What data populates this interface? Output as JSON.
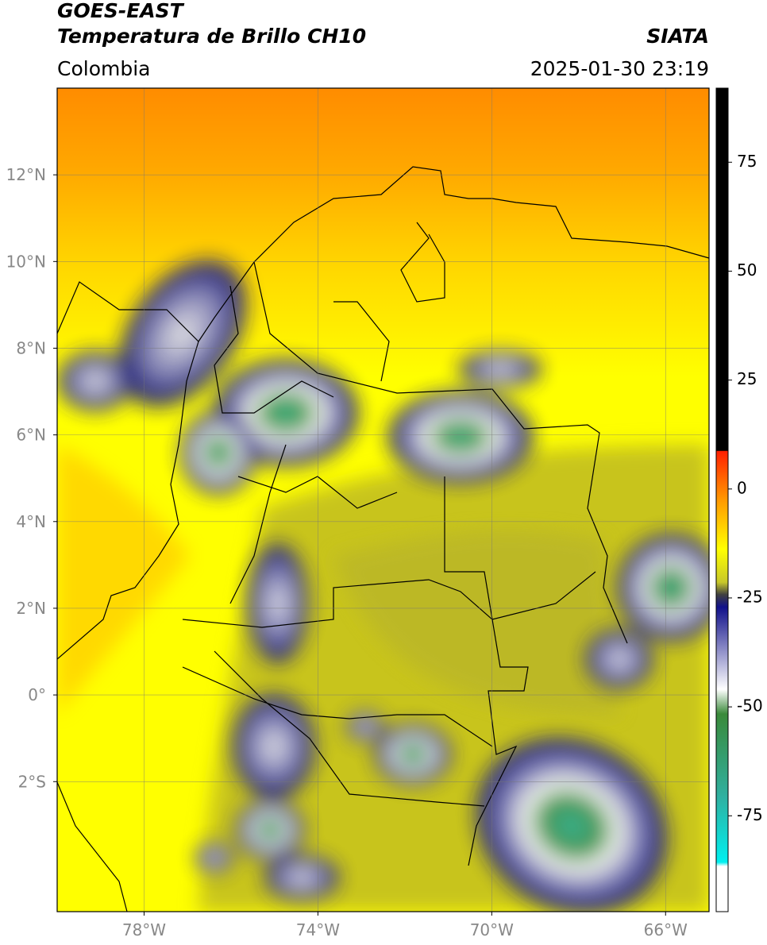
{
  "header": {
    "title": "GOES-EAST",
    "subtitle": "Temperatura de Brillo CH10",
    "source": "SIATA",
    "region": "Colombia",
    "datetime": "2025-01-30 23:19"
  },
  "map": {
    "xlim": [
      -80,
      -65
    ],
    "ylim": [
      -5,
      14
    ],
    "xticks": [
      {
        "value": -78,
        "label": "78°W"
      },
      {
        "value": -74,
        "label": "74°W"
      },
      {
        "value": -70,
        "label": "70°W"
      },
      {
        "value": -66,
        "label": "66°W"
      }
    ],
    "yticks": [
      {
        "value": 12,
        "label": "12°N"
      },
      {
        "value": 10,
        "label": "10°N"
      },
      {
        "value": 8,
        "label": "8°N"
      },
      {
        "value": 6,
        "label": "6°N"
      },
      {
        "value": 4,
        "label": "4°N"
      },
      {
        "value": 2,
        "label": "2°N"
      },
      {
        "value": 0,
        "label": "0°"
      },
      {
        "value": -2,
        "label": "2°S"
      }
    ],
    "grid": true
  },
  "colorbar": {
    "lim": [
      -97,
      92
    ],
    "ticks": [
      75,
      50,
      25,
      0,
      -25,
      -50,
      -75
    ]
  }
}
